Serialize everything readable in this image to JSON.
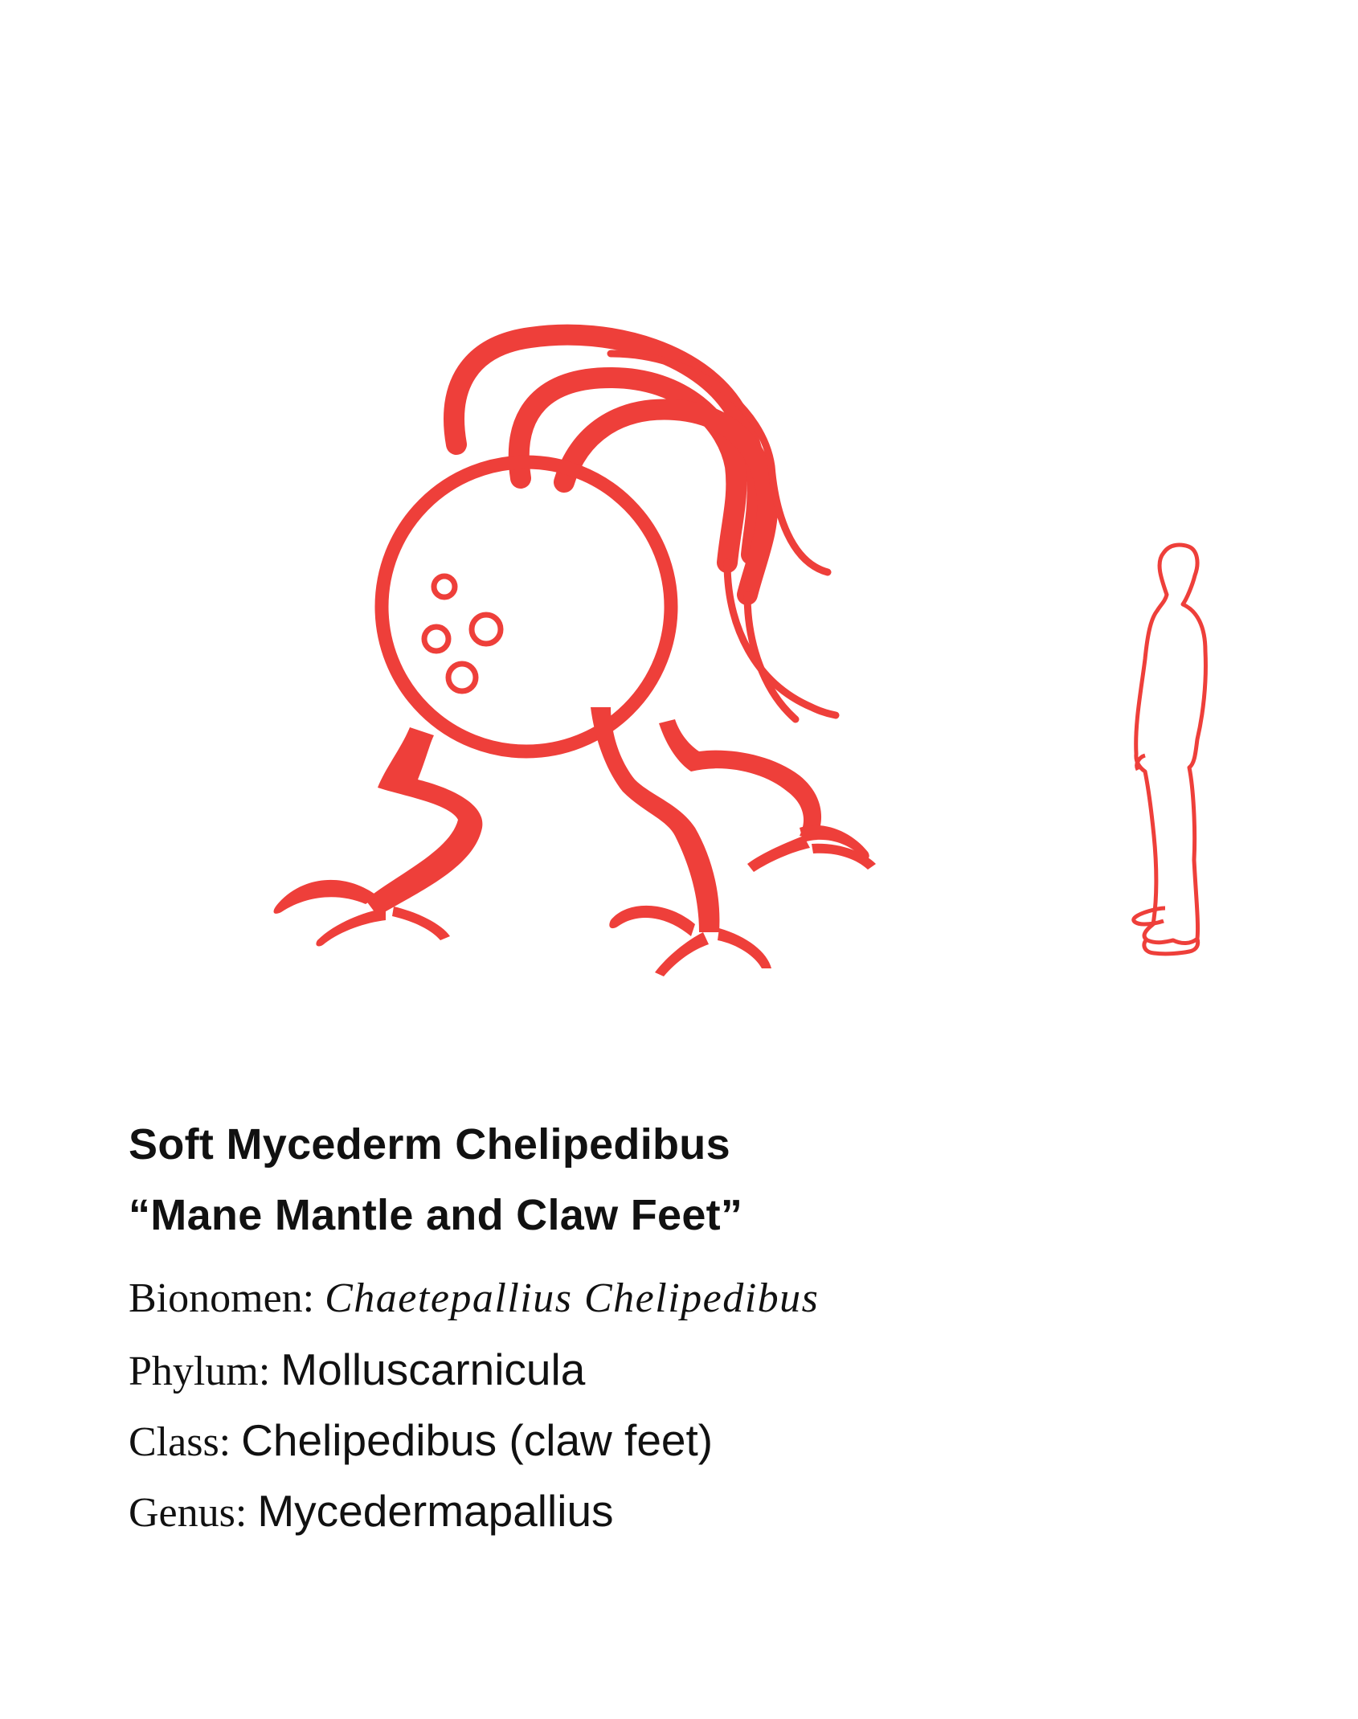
{
  "title": {
    "line1": "Soft Mycederm Chelipedibus",
    "line2": "“Mane Mantle and Claw Feet”"
  },
  "fields": [
    {
      "label": "Bionomen: ",
      "value": "Chaetepallius Chelipedibus"
    },
    {
      "label": "Phylum: ",
      "value": "Molluscarnicula"
    },
    {
      "label": "Class: ",
      "value": "Chelipedibus (claw feet)"
    },
    {
      "label": "Genus: ",
      "value": "Mycedermapallius"
    }
  ],
  "colors": {
    "accent": "#ee3f3a",
    "text": "#111111",
    "background": "#ffffff"
  },
  "icons": {
    "creature": "creature-illustration",
    "human": "human-scale-silhouette-icon"
  }
}
